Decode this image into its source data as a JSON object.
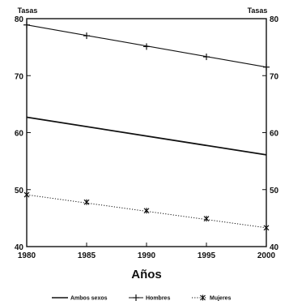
{
  "chart_data": {
    "type": "line",
    "xlabel": "Años",
    "ylabel_left": "Tasas",
    "ylabel_right": "Tasas",
    "xlim": [
      1980,
      2000
    ],
    "ylim": [
      40,
      80
    ],
    "x_ticks": [
      "1980",
      "1985",
      "1990",
      "1995",
      "2000"
    ],
    "y_ticks": [
      "40",
      "50",
      "60",
      "70",
      "80"
    ],
    "grid": false,
    "legend_position": "bottom",
    "series": [
      {
        "name": "Ambos sexos",
        "style": "solid",
        "stroke": "#111111",
        "x": [
          1980,
          2000
        ],
        "y": [
          62.7,
          56.1
        ],
        "markers": []
      },
      {
        "name": "Hombres",
        "style": "solid",
        "stroke": "#111111",
        "x": [
          1980,
          2000
        ],
        "y": [
          78.9,
          71.5
        ],
        "markers": [
          [
            1980,
            78.9
          ],
          [
            1985,
            77.0
          ],
          [
            1990,
            75.1
          ],
          [
            1995,
            73.3
          ],
          [
            2000,
            71.5
          ]
        ]
      },
      {
        "name": "Mujeres",
        "style": "dotted",
        "stroke": "#111111",
        "x": [
          1980,
          2000
        ],
        "y": [
          49.1,
          43.3
        ],
        "markers": [
          [
            1980,
            49.1
          ],
          [
            1985,
            47.8
          ],
          [
            1990,
            46.3
          ],
          [
            1995,
            44.9
          ],
          [
            2000,
            43.3
          ]
        ]
      }
    ]
  }
}
